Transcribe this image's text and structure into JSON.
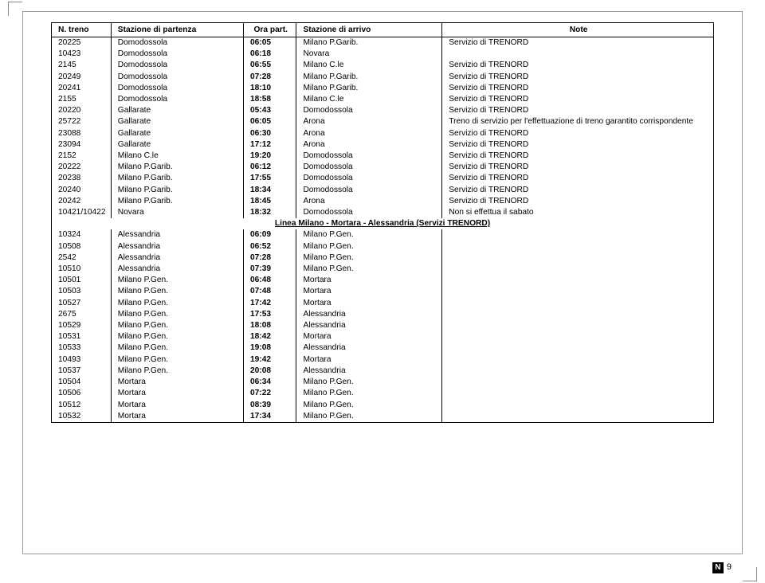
{
  "headers": {
    "treno": "N. treno",
    "partenza": "Stazione di partenza",
    "ora": "Ora part.",
    "arrivo": "Stazione di arrivo",
    "note": "Note"
  },
  "columns": {
    "widths_pct": [
      8,
      20,
      8,
      22,
      42
    ]
  },
  "section_header": "Linea Milano - Mortara - Alessandria (Servizi TRENORD)",
  "rows_a": [
    {
      "n": "20225",
      "p": "Domodossola",
      "o": "06:05",
      "a": "Milano P.Garib.",
      "note": "Servizio di TRENORD"
    },
    {
      "n": "10423",
      "p": "Domodossola",
      "o": "06:18",
      "a": "Novara",
      "note": ""
    },
    {
      "n": "2145",
      "p": "Domodossola",
      "o": "06:55",
      "a": "Milano C.le",
      "note": "Servizio di TRENORD"
    },
    {
      "n": "20249",
      "p": "Domodossola",
      "o": "07:28",
      "a": "Milano P.Garib.",
      "note": "Servizio di TRENORD"
    },
    {
      "n": "20241",
      "p": "Domodossola",
      "o": "18:10",
      "a": "Milano P.Garib.",
      "note": "Servizio di TRENORD"
    },
    {
      "n": "2155",
      "p": "Domodossola",
      "o": "18:58",
      "a": "Milano C.le",
      "note": "Servizio di TRENORD"
    },
    {
      "n": "20220",
      "p": "Gallarate",
      "o": "05:43",
      "a": "Domodossola",
      "note": "Servizio di TRENORD"
    },
    {
      "n": "25722",
      "p": "Gallarate",
      "o": "06:05",
      "a": "Arona",
      "note": "Treno di servizio per l'effettuazione di treno garantito corrispondente",
      "multi": true
    },
    {
      "n": "23088",
      "p": "Gallarate",
      "o": "06:30",
      "a": "Arona",
      "note": "Servizio di TRENORD"
    },
    {
      "n": "23094",
      "p": "Gallarate",
      "o": "17:12",
      "a": "Arona",
      "note": "Servizio di TRENORD"
    },
    {
      "n": "2152",
      "p": "Milano C.le",
      "o": "19:20",
      "a": "Domodossola",
      "note": "Servizio di TRENORD"
    },
    {
      "n": "20222",
      "p": "Milano P.Garib.",
      "o": "06:12",
      "a": "Domodossola",
      "note": "Servizio di TRENORD"
    },
    {
      "n": "20238",
      "p": "Milano P.Garib.",
      "o": "17:55",
      "a": "Domodossola",
      "note": "Servizio di TRENORD"
    },
    {
      "n": "20240",
      "p": "Milano P.Garib.",
      "o": "18:34",
      "a": "Domodossola",
      "note": "Servizio di TRENORD"
    },
    {
      "n": "20242",
      "p": "Milano P.Garib.",
      "o": "18:45",
      "a": "Arona",
      "note": "Servizio di TRENORD"
    },
    {
      "n": "10421/10422",
      "p": "Novara",
      "o": "18:32",
      "a": "Domodossola",
      "note": "Non si effettua il sabato"
    }
  ],
  "rows_b": [
    {
      "n": "10324",
      "p": "Alessandria",
      "o": "06:09",
      "a": "Milano P.Gen.",
      "note": ""
    },
    {
      "n": "10508",
      "p": "Alessandria",
      "o": "06:52",
      "a": "Milano P.Gen.",
      "note": ""
    },
    {
      "n": "2542",
      "p": "Alessandria",
      "o": "07:28",
      "a": "Milano P.Gen.",
      "note": ""
    },
    {
      "n": "10510",
      "p": "Alessandria",
      "o": "07:39",
      "a": "Milano P.Gen.",
      "note": ""
    },
    {
      "n": "10501",
      "p": "Milano P.Gen.",
      "o": "06:48",
      "a": "Mortara",
      "note": ""
    },
    {
      "n": "10503",
      "p": "Milano P.Gen.",
      "o": "07:48",
      "a": "Mortara",
      "note": ""
    },
    {
      "n": "10527",
      "p": "Milano P.Gen.",
      "o": "17:42",
      "a": "Mortara",
      "note": ""
    },
    {
      "n": "2675",
      "p": "Milano P.Gen.",
      "o": "17:53",
      "a": "Alessandria",
      "note": ""
    },
    {
      "n": "10529",
      "p": "Milano P.Gen.",
      "o": "18:08",
      "a": "Alessandria",
      "note": ""
    },
    {
      "n": "10531",
      "p": "Milano P.Gen.",
      "o": "18:42",
      "a": "Mortara",
      "note": ""
    },
    {
      "n": "10533",
      "p": "Milano P.Gen.",
      "o": "19:08",
      "a": "Alessandria",
      "note": ""
    },
    {
      "n": "10493",
      "p": "Milano P.Gen.",
      "o": "19:42",
      "a": "Mortara",
      "note": ""
    },
    {
      "n": "10537",
      "p": "Milano P.Gen.",
      "o": "20:08",
      "a": "Alessandria",
      "note": ""
    },
    {
      "n": "10504",
      "p": "Mortara",
      "o": "06:34",
      "a": "Milano P.Gen.",
      "note": ""
    },
    {
      "n": "10506",
      "p": "Mortara",
      "o": "07:22",
      "a": "Milano P.Gen.",
      "note": ""
    },
    {
      "n": "10512",
      "p": "Mortara",
      "o": "08:39",
      "a": "Milano P.Gen.",
      "note": ""
    },
    {
      "n": "10532",
      "p": "Mortara",
      "o": "17:34",
      "a": "Milano P.Gen.",
      "note": ""
    }
  ],
  "page": {
    "letter": "N",
    "number": "9"
  }
}
